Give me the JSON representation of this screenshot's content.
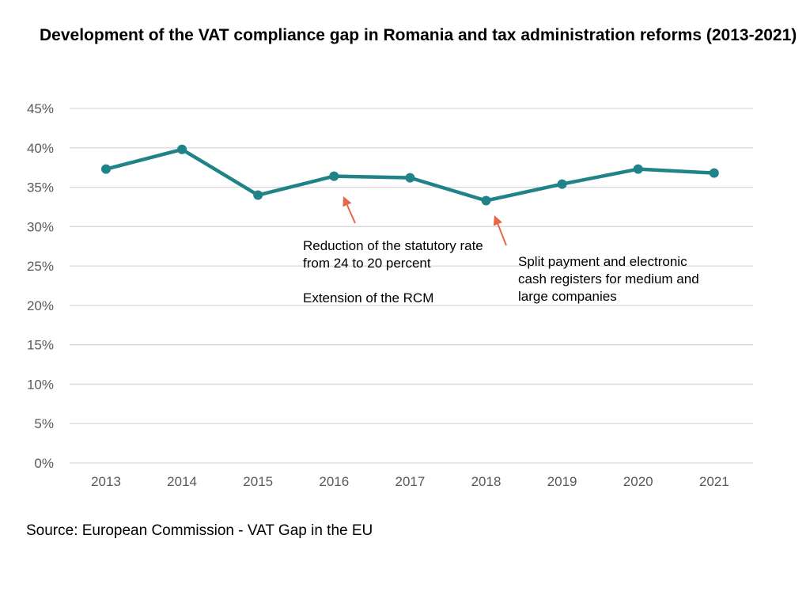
{
  "chart_data": {
    "type": "line",
    "title": "Development of the VAT compliance gap in Romania and tax administration reforms (2013-2021)",
    "x": [
      "2013",
      "2014",
      "2015",
      "2016",
      "2017",
      "2018",
      "2019",
      "2020",
      "2021"
    ],
    "series": [
      {
        "values": [
          37.3,
          39.8,
          34.0,
          36.4,
          36.2,
          33.3,
          35.4,
          37.3,
          36.8
        ]
      }
    ],
    "ylim": [
      0,
      45
    ],
    "yticks": [
      "0%",
      "5%",
      "10%",
      "15%",
      "20%",
      "25%",
      "30%",
      "35%",
      "40%",
      "45%"
    ],
    "ytick_values": [
      0,
      5,
      10,
      15,
      20,
      25,
      30,
      35,
      40,
      45
    ],
    "xlabel": "",
    "ylabel": "",
    "grid": "horizontal",
    "legend": "none",
    "colors": {
      "line": "#1f8388",
      "arrow": "#e8664a",
      "grid": "#d9d9d9",
      "tick": "#595959"
    },
    "annotations": [
      {
        "target": "2016",
        "lines": [
          "Reduction of the statutory rate",
          "from 24 to 20 percent",
          "",
          "Extension of the RCM"
        ]
      },
      {
        "target": "2018",
        "lines": [
          "Split payment and electronic",
          "cash registers for medium and",
          "large companies"
        ]
      }
    ]
  },
  "source": "Source: European Commission - VAT Gap in the EU"
}
